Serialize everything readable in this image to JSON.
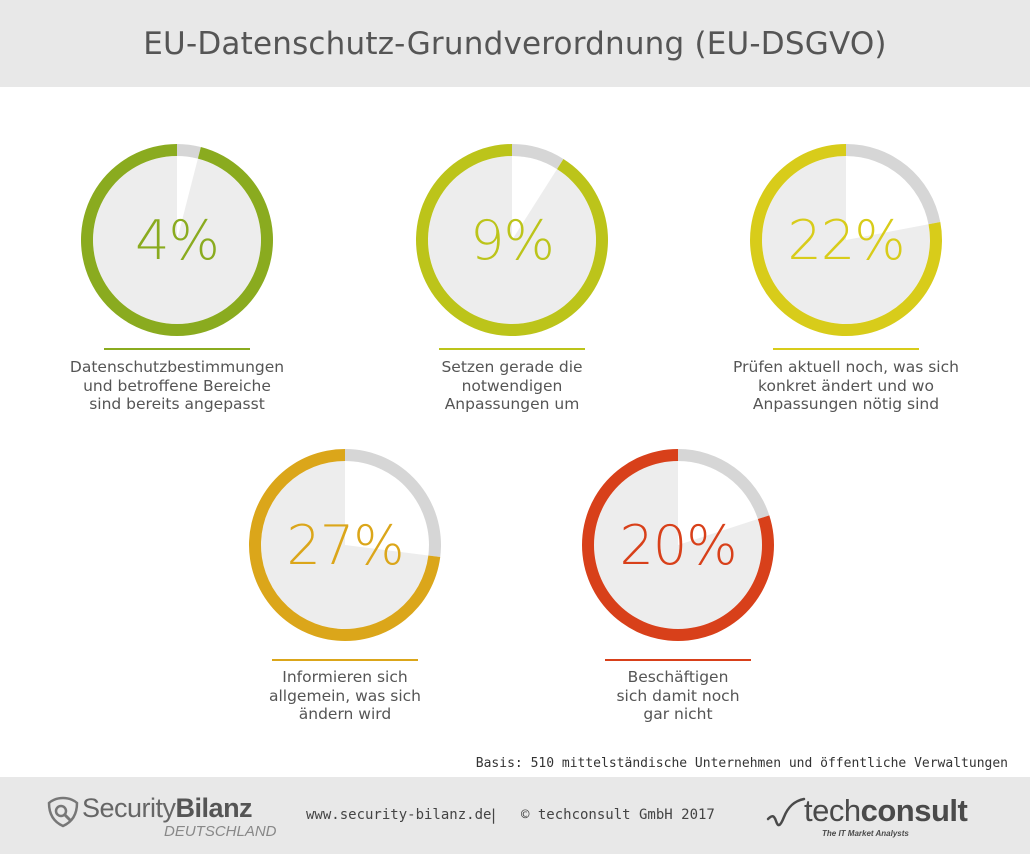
{
  "title": "EU-Datenschutz-Grundverordnung (EU-DSGVO)",
  "chart_data": [
    {
      "type": "pie",
      "value": 4,
      "label": "4%",
      "description": [
        "Datenschutzbestimmungen",
        "und betroffene Bereiche",
        "sind bereits angepasst"
      ],
      "color": "#8aab1f"
    },
    {
      "type": "pie",
      "value": 9,
      "label": "9%",
      "description": [
        "Setzen gerade die",
        "notwendigen",
        "Anpassungen um"
      ],
      "color": "#bcc41a"
    },
    {
      "type": "pie",
      "value": 22,
      "label": "22%",
      "description": [
        "Prüfen aktuell noch, was sich",
        "konkret ändert und wo",
        "Anpassungen nötig sind"
      ],
      "color": "#d8cc1a"
    },
    {
      "type": "pie",
      "value": 27,
      "label": "27%",
      "description": [
        "Informieren sich",
        "allgemein, was sich",
        "ändern wird"
      ],
      "color": "#dba61a"
    },
    {
      "type": "pie",
      "value": 20,
      "label": "20%",
      "description": [
        "Beschäftigen",
        "sich damit noch",
        "gar nicht"
      ],
      "color": "#d8401a"
    }
  ],
  "ring_track_color": "#d6d6d6",
  "slice_color": "#ffffff",
  "inner_color": "#ededed",
  "basis": "Basis: 510 mittelständische Unternehmen und öffentliche Verwaltungen",
  "footer": {
    "logo_left_main": "Security",
    "logo_left_bold": "Bilanz",
    "logo_left_sub": "DEUTSCHLAND",
    "url": "www.security-bilanz.de",
    "separator": "|",
    "copyright": "© techconsult GmbH 2017",
    "logo_right_main": "tech",
    "logo_right_bold": "consult",
    "logo_right_tagline": "The IT Market Analysts"
  }
}
